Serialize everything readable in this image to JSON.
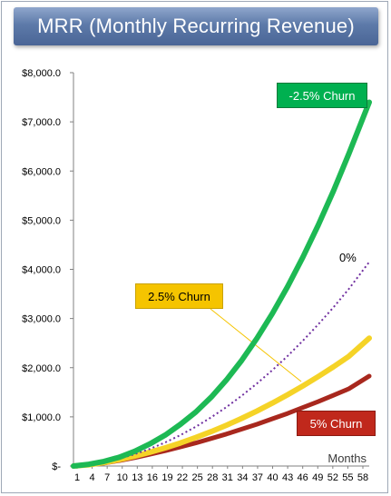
{
  "title": "MRR (Monthly Recurring Revenue)",
  "chart_data": {
    "type": "line",
    "title": "MRR (Monthly Recurring Revenue)",
    "xlabel": "Months",
    "ylabel": "",
    "xlim": [
      1,
      59
    ],
    "ylim": [
      0,
      8000
    ],
    "grid": false,
    "y_ticks": [
      {
        "value": 0,
        "label": "$-"
      },
      {
        "value": 1000,
        "label": "$1,000.0"
      },
      {
        "value": 2000,
        "label": "$2,000.0"
      },
      {
        "value": 3000,
        "label": "$3,000.0"
      },
      {
        "value": 4000,
        "label": "$4,000.0"
      },
      {
        "value": 5000,
        "label": "$5,000.0"
      },
      {
        "value": 6000,
        "label": "$6,000.0"
      },
      {
        "value": 7000,
        "label": "$7,000.0"
      },
      {
        "value": 8000,
        "label": "$8,000.0"
      }
    ],
    "x_ticks": [
      "1",
      "4",
      "7",
      "10",
      "13",
      "16",
      "19",
      "22",
      "25",
      "28",
      "31",
      "34",
      "37",
      "40",
      "43",
      "46",
      "49",
      "52",
      "55",
      "58"
    ],
    "x": [
      1,
      4,
      7,
      10,
      13,
      16,
      19,
      22,
      25,
      28,
      31,
      34,
      37,
      40,
      43,
      46,
      49,
      52,
      55,
      59
    ],
    "series": [
      {
        "name": "-2.5% Churn",
        "color": "#1db954",
        "style": "solid",
        "values": [
          0,
          35,
          95,
          180,
          300,
          450,
          630,
          850,
          1100,
          1400,
          1750,
          2150,
          2600,
          3100,
          3650,
          4250,
          4900,
          5600,
          6350,
          7400
        ]
      },
      {
        "name": "0%",
        "color": "#7030a0",
        "style": "dotted",
        "values": [
          0,
          30,
          80,
          150,
          240,
          350,
          480,
          630,
          800,
          990,
          1200,
          1430,
          1680,
          1950,
          2240,
          2550,
          2880,
          3230,
          3600,
          4150
        ]
      },
      {
        "name": "2.5% Churn",
        "color": "#f5d327",
        "style": "solid",
        "values": [
          0,
          25,
          70,
          130,
          200,
          280,
          370,
          470,
          580,
          700,
          830,
          970,
          1120,
          1280,
          1450,
          1630,
          1820,
          2020,
          2230,
          2600
        ]
      },
      {
        "name": "5% Churn",
        "color": "#a8281e",
        "style": "solid",
        "values": [
          0,
          22,
          60,
          110,
          170,
          240,
          310,
          390,
          470,
          560,
          650,
          750,
          850,
          960,
          1070,
          1190,
          1310,
          1440,
          1570,
          1830
        ]
      }
    ],
    "annotations": [
      {
        "text": "-2.5% Churn",
        "series": "-2.5% Churn"
      },
      {
        "text": "0%",
        "series": "0%"
      },
      {
        "text": "2.5% Churn",
        "series": "2.5% Churn"
      },
      {
        "text": "5% Churn",
        "series": "5% Churn"
      }
    ]
  }
}
